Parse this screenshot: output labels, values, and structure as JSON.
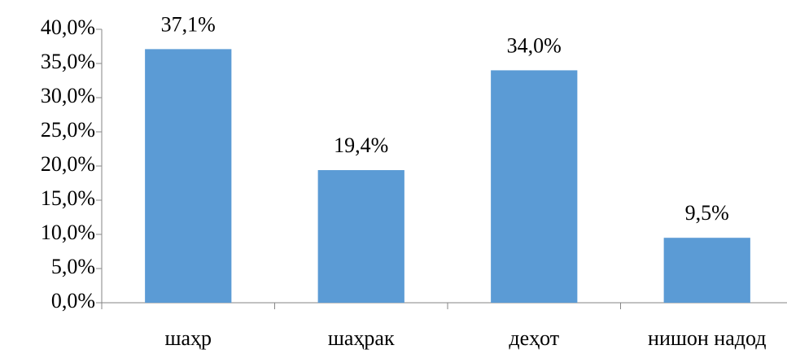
{
  "chart_data": {
    "type": "bar",
    "categories": [
      "шаҳр",
      "шаҳрак",
      "деҳот",
      "нишон надод"
    ],
    "values": [
      37.1,
      19.4,
      34.0,
      9.5
    ],
    "value_labels": [
      "37,1%",
      "19,4%",
      "34,0%",
      "9,5%"
    ],
    "color": "#5b9bd5",
    "ylim": [
      0,
      40
    ],
    "yticks": [
      {
        "value": 0,
        "label": "0,0%"
      },
      {
        "value": 5,
        "label": "5,0%"
      },
      {
        "value": 10,
        "label": "10,0%"
      },
      {
        "value": 15,
        "label": "15,0%"
      },
      {
        "value": 20,
        "label": "20,0%"
      },
      {
        "value": 25,
        "label": "25,0%"
      },
      {
        "value": 30,
        "label": "30,0%"
      },
      {
        "value": 35,
        "label": "35,0%"
      },
      {
        "value": 40,
        "label": "40,0%"
      }
    ],
    "grid": false
  }
}
